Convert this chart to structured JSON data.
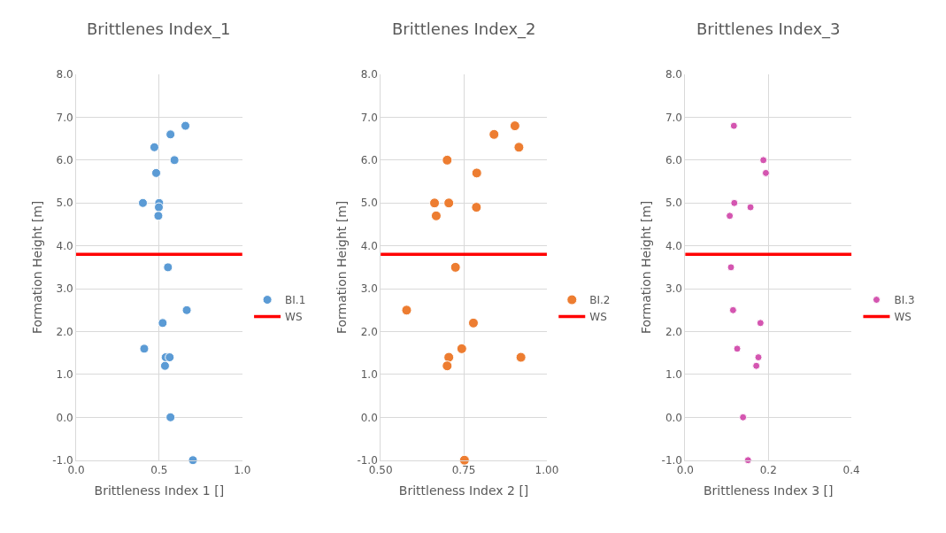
{
  "chart_data": [
    {
      "type": "scatter",
      "title": "Brittlenes Index_1",
      "xlabel": "Brittleness Index 1 []",
      "ylabel": "Formation Height [m]",
      "marker": "circle",
      "grid": true,
      "legend": "right",
      "series": [
        {
          "name": "BI.1",
          "color": "#5b9bd5",
          "x": [
            0.658,
            0.568,
            0.471,
            0.592,
            0.482,
            0.402,
            0.5,
            0.498,
            0.495,
            0.553,
            0.666,
            0.521,
            0.41,
            0.539,
            0.563,
            0.535,
            0.568,
            0.703
          ],
          "values": [
            6.8,
            6.6,
            6.3,
            6.0,
            5.7,
            5.0,
            5.0,
            4.9,
            4.7,
            3.5,
            2.5,
            2.2,
            1.6,
            1.4,
            1.4,
            1.2,
            0.0,
            -1.0
          ]
        }
      ],
      "ref_lines": [
        {
          "axis": "y",
          "value": 3.8,
          "label": "WS",
          "color": "#ff0000",
          "line_style": "solid"
        }
      ],
      "xlim": [
        0,
        1
      ],
      "xticks": [
        {
          "value": 0,
          "label": "0.0"
        },
        0.5,
        {
          "value": 1,
          "label": "1.0"
        }
      ],
      "ylim": [
        -1,
        8
      ],
      "yticks": [
        {
          "value": -1,
          "label": "-1.0"
        },
        {
          "value": 0,
          "label": "0.0"
        },
        {
          "value": 1,
          "label": "1.0"
        },
        {
          "value": 2,
          "label": "2.0"
        },
        {
          "value": 3,
          "label": "3.0"
        },
        {
          "value": 4,
          "label": "4.0"
        },
        {
          "value": 5,
          "label": "5.0"
        },
        {
          "value": 6,
          "label": "6.0"
        },
        {
          "value": 7,
          "label": "7.0"
        },
        {
          "value": 8,
          "label": "8.0"
        }
      ]
    },
    {
      "type": "scatter",
      "title": "Brittlenes Index_2",
      "xlabel": "Brittleness Index 2 []",
      "ylabel": "Formation Height [m]",
      "marker": "circle",
      "grid": true,
      "legend": "right",
      "series": [
        {
          "name": "BI.2",
          "color": "#ed7d31",
          "x": [
            0.904,
            0.841,
            0.916,
            0.7,
            0.789,
            0.662,
            0.705,
            0.788,
            0.667,
            0.725,
            0.578,
            0.779,
            0.744,
            0.705,
            0.922,
            0.7,
            0.752
          ],
          "values": [
            6.8,
            6.6,
            6.3,
            6.0,
            5.7,
            5.0,
            5.0,
            4.9,
            4.7,
            3.5,
            2.5,
            2.2,
            1.6,
            1.4,
            1.4,
            1.2,
            -1.0
          ]
        }
      ],
      "ref_lines": [
        {
          "axis": "y",
          "value": 3.8,
          "label": "WS",
          "color": "#ff0000",
          "line_style": "solid"
        }
      ],
      "xlim": [
        0.5,
        1
      ],
      "xticks": [
        {
          "value": 0.5,
          "label": "0.50"
        },
        0.75,
        {
          "value": 1,
          "label": "1.00"
        }
      ],
      "ylim": [
        -1,
        8
      ],
      "yticks": [
        {
          "value": -1,
          "label": "-1.0"
        },
        {
          "value": 0,
          "label": "0.0"
        },
        {
          "value": 1,
          "label": "1.0"
        },
        {
          "value": 2,
          "label": "2.0"
        },
        {
          "value": 3,
          "label": "3.0"
        },
        {
          "value": 4,
          "label": "4.0"
        },
        {
          "value": 5,
          "label": "5.0"
        },
        {
          "value": 6,
          "label": "6.0"
        },
        {
          "value": 7,
          "label": "7.0"
        },
        {
          "value": 8,
          "label": "8.0"
        }
      ]
    },
    {
      "type": "scatter",
      "title": "Brittlenes Index_3",
      "xlabel": "Brittleness Index 3 []",
      "ylabel": "Formation Height [m]",
      "marker": "circle",
      "grid": true,
      "legend": "right",
      "series": [
        {
          "name": "BI.3",
          "color": "#d455b0",
          "x": [
            0.117,
            0.188,
            0.194,
            0.118,
            0.157,
            0.107,
            0.11,
            0.115,
            0.181,
            0.125,
            0.176,
            0.171,
            0.139,
            0.151
          ],
          "values": [
            6.8,
            6.0,
            5.7,
            5.0,
            4.9,
            4.7,
            3.5,
            2.5,
            2.2,
            1.6,
            1.4,
            1.2,
            0.0,
            -1.0
          ]
        }
      ],
      "ref_lines": [
        {
          "axis": "y",
          "value": 3.8,
          "label": "WS",
          "color": "#ff0000",
          "line_style": "solid"
        }
      ],
      "xlim": [
        0,
        0.4
      ],
      "xticks": [
        {
          "value": 0,
          "label": "0.0"
        },
        0.2,
        0.4
      ],
      "ylim": [
        -1,
        8
      ],
      "yticks": [
        {
          "value": -1,
          "label": "-1.0"
        },
        {
          "value": 0,
          "label": "0.0"
        },
        {
          "value": 1,
          "label": "1.0"
        },
        {
          "value": 2,
          "label": "2.0"
        },
        {
          "value": 3,
          "label": "3.0"
        },
        {
          "value": 4,
          "label": "4.0"
        },
        {
          "value": 5,
          "label": "5.0"
        },
        {
          "value": 6,
          "label": "6.0"
        },
        {
          "value": 7,
          "label": "7.0"
        },
        {
          "value": 8,
          "label": "8.0"
        }
      ]
    }
  ]
}
